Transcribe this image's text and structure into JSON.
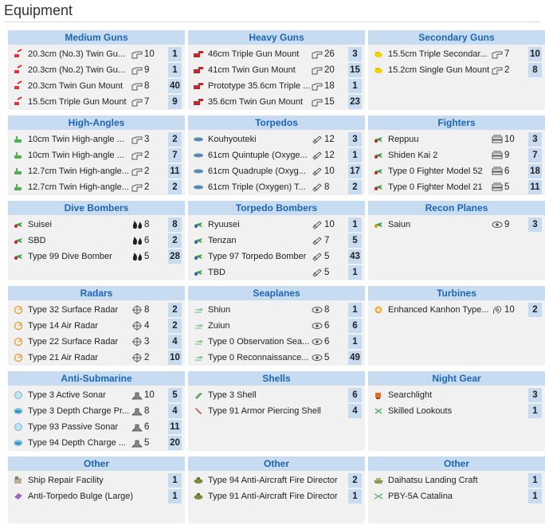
{
  "page_title": "Equipment",
  "colors": {
    "header_bg": "#c7dcf1",
    "header_text": "#1c66b8",
    "card_bg": "#f1f1f1"
  },
  "sections": [
    {
      "title": "Medium Guns",
      "items": [
        {
          "icon": "red-gun-icon",
          "name": "20.3cm (No.3) Twin Gu...",
          "stat_icon": "firepower-icon",
          "stat": "10",
          "count": "1"
        },
        {
          "icon": "red-gun-icon",
          "name": "20.3cm (No.2) Twin Gu...",
          "stat_icon": "firepower-icon",
          "stat": "9",
          "count": "1"
        },
        {
          "icon": "red-gun-icon",
          "name": "20.3cm Twin Gun Mount",
          "stat_icon": "firepower-icon",
          "stat": "8",
          "count": "40"
        },
        {
          "icon": "red-gun-icon",
          "name": "15.5cm Triple Gun Mount",
          "stat_icon": "firepower-icon",
          "stat": "7",
          "count": "9"
        }
      ]
    },
    {
      "title": "Heavy Guns",
      "items": [
        {
          "icon": "heavy-gun-icon",
          "name": "46cm Triple Gun Mount",
          "stat_icon": "firepower-icon",
          "stat": "26",
          "count": "3"
        },
        {
          "icon": "heavy-gun-icon",
          "name": "41cm Twin Gun Mount",
          "stat_icon": "firepower-icon",
          "stat": "20",
          "count": "15"
        },
        {
          "icon": "heavy-gun-icon",
          "name": "Prototype 35.6cm Triple ...",
          "stat_icon": "firepower-icon",
          "stat": "18",
          "count": "1"
        },
        {
          "icon": "heavy-gun-icon",
          "name": "35.6cm Twin Gun Mount",
          "stat_icon": "firepower-icon",
          "stat": "15",
          "count": "23"
        }
      ]
    },
    {
      "title": "Secondary Guns",
      "items": [
        {
          "icon": "secondary-gun-icon",
          "name": "15.5cm Triple Secondar...",
          "stat_icon": "firepower-icon",
          "stat": "7",
          "count": "10"
        },
        {
          "icon": "secondary-gun-icon",
          "name": "15.2cm Single Gun Mount",
          "stat_icon": "firepower-icon",
          "stat": "2",
          "count": "8"
        }
      ]
    },
    {
      "title": "High-Angles",
      "items": [
        {
          "icon": "high-angle-gun-icon",
          "name": "10cm Twin High-angle ...",
          "stat_icon": "firepower-icon",
          "stat": "3",
          "count": "2"
        },
        {
          "icon": "high-angle-gun-icon",
          "name": "10cm Twin High-angle ...",
          "stat_icon": "firepower-icon",
          "stat": "2",
          "count": "7"
        },
        {
          "icon": "high-angle-gun-icon",
          "name": "12.7cm Twin High-angle...",
          "stat_icon": "firepower-icon",
          "stat": "2",
          "count": "11"
        },
        {
          "icon": "high-angle-gun-icon",
          "name": "12.7cm Twin High-angle...",
          "stat_icon": "firepower-icon",
          "stat": "2",
          "count": "2"
        }
      ]
    },
    {
      "title": "Torpedos",
      "items": [
        {
          "icon": "torpedo-icon",
          "name": "Kouhyouteki",
          "stat_icon": "torpedo-stat-icon",
          "stat": "12",
          "count": "3"
        },
        {
          "icon": "torpedo-icon",
          "name": "61cm Quintuple (Oxyge...",
          "stat_icon": "torpedo-stat-icon",
          "stat": "12",
          "count": "1"
        },
        {
          "icon": "torpedo-icon",
          "name": "61cm Quadruple (Oxyg...",
          "stat_icon": "torpedo-stat-icon",
          "stat": "10",
          "count": "17"
        },
        {
          "icon": "torpedo-icon",
          "name": "61cm Triple (Oxygen) T...",
          "stat_icon": "torpedo-stat-icon",
          "stat": "8",
          "count": "2"
        }
      ]
    },
    {
      "title": "Fighters",
      "items": [
        {
          "icon": "fighter-plane-icon",
          "name": "Reppuu",
          "stat_icon": "anti-air-icon",
          "stat": "10",
          "count": "3"
        },
        {
          "icon": "fighter-plane-icon",
          "name": "Shiden Kai 2",
          "stat_icon": "anti-air-icon",
          "stat": "9",
          "count": "7"
        },
        {
          "icon": "fighter-plane-icon",
          "name": "Type 0 Fighter Model 52",
          "stat_icon": "anti-air-icon",
          "stat": "6",
          "count": "18"
        },
        {
          "icon": "fighter-plane-icon",
          "name": "Type 0 Fighter Model 21",
          "stat_icon": "anti-air-icon",
          "stat": "5",
          "count": "11"
        }
      ]
    },
    {
      "title": "Dive Bombers",
      "items": [
        {
          "icon": "dive-bomber-icon",
          "name": "Suisei",
          "stat_icon": "bombing-icon",
          "stat": "8",
          "count": "8"
        },
        {
          "icon": "dive-bomber-icon",
          "name": "SBD",
          "stat_icon": "bombing-icon",
          "stat": "6",
          "count": "2"
        },
        {
          "icon": "dive-bomber-icon",
          "name": "Type 99 Dive Bomber",
          "stat_icon": "bombing-icon",
          "stat": "5",
          "count": "28"
        }
      ]
    },
    {
      "title": "Torpedo Bombers",
      "items": [
        {
          "icon": "torpedo-bomber-icon",
          "name": "Ryuusei",
          "stat_icon": "torpedo-stat-icon",
          "stat": "10",
          "count": "1"
        },
        {
          "icon": "torpedo-bomber-icon",
          "name": "Tenzan",
          "stat_icon": "torpedo-stat-icon",
          "stat": "7",
          "count": "5"
        },
        {
          "icon": "torpedo-bomber-icon",
          "name": "Type 97 Torpedo Bomber",
          "stat_icon": "torpedo-stat-icon",
          "stat": "5",
          "count": "43"
        },
        {
          "icon": "torpedo-bomber-icon",
          "name": "TBD",
          "stat_icon": "torpedo-stat-icon",
          "stat": "5",
          "count": "1"
        }
      ]
    },
    {
      "title": "Recon Planes",
      "items": [
        {
          "icon": "recon-plane-icon",
          "name": "Saiun",
          "stat_icon": "line-of-sight-icon",
          "stat": "9",
          "count": "3"
        }
      ]
    },
    {
      "title": "Radars",
      "items": [
        {
          "icon": "radar-icon",
          "name": "Type 32 Surface Radar",
          "stat_icon": "accuracy-icon",
          "stat": "8",
          "count": "2"
        },
        {
          "icon": "radar-icon",
          "name": "Type 14 Air Radar",
          "stat_icon": "accuracy-icon",
          "stat": "4",
          "count": "2"
        },
        {
          "icon": "radar-icon",
          "name": "Type 22 Surface Radar",
          "stat_icon": "accuracy-icon",
          "stat": "3",
          "count": "4"
        },
        {
          "icon": "radar-icon",
          "name": "Type 21 Air Radar",
          "stat_icon": "accuracy-icon",
          "stat": "2",
          "count": "10"
        }
      ]
    },
    {
      "title": "Seaplanes",
      "items": [
        {
          "icon": "seaplane-icon",
          "name": "Shiun",
          "stat_icon": "line-of-sight-icon",
          "stat": "8",
          "count": "1"
        },
        {
          "icon": "seaplane-icon",
          "name": "Zuiun",
          "stat_icon": "line-of-sight-icon",
          "stat": "6",
          "count": "6"
        },
        {
          "icon": "seaplane-icon",
          "name": "Type 0 Observation Sea...",
          "stat_icon": "line-of-sight-icon",
          "stat": "6",
          "count": "1"
        },
        {
          "icon": "seaplane-icon",
          "name": "Type 0 Reconnaissance...",
          "stat_icon": "line-of-sight-icon",
          "stat": "5",
          "count": "49"
        }
      ]
    },
    {
      "title": "Turbines",
      "items": [
        {
          "icon": "turbine-icon",
          "name": "Enhanced Kanhon Type...",
          "stat_icon": "evasion-icon",
          "stat": "10",
          "count": "2"
        }
      ]
    },
    {
      "title": "Anti-Submarine",
      "items": [
        {
          "icon": "sonar-icon",
          "name": "Type 3 Active Sonar",
          "stat_icon": "anti-submarine-icon",
          "stat": "10",
          "count": "5"
        },
        {
          "icon": "depth-charge-icon",
          "name": "Type 3 Depth Charge Pr...",
          "stat_icon": "anti-submarine-icon",
          "stat": "8",
          "count": "4"
        },
        {
          "icon": "sonar-icon",
          "name": "Type 93 Passive Sonar",
          "stat_icon": "anti-submarine-icon",
          "stat": "6",
          "count": "11"
        },
        {
          "icon": "depth-charge-icon",
          "name": "Type 94 Depth Charge ...",
          "stat_icon": "anti-submarine-icon",
          "stat": "5",
          "count": "20"
        }
      ]
    },
    {
      "title": "Shells",
      "items": [
        {
          "icon": "type3-shell-icon",
          "name": "Type 3 Shell",
          "stat_icon": "",
          "stat": "",
          "count": "6"
        },
        {
          "icon": "ap-shell-icon",
          "name": "Type 91 Armor Piercing Shell",
          "stat_icon": "",
          "stat": "",
          "count": "4"
        }
      ]
    },
    {
      "title": "Night Gear",
      "items": [
        {
          "icon": "searchlight-icon",
          "name": "Searchlight",
          "stat_icon": "",
          "stat": "",
          "count": "3"
        },
        {
          "icon": "lookout-icon",
          "name": "Skilled Lookouts",
          "stat_icon": "",
          "stat": "",
          "count": "1"
        }
      ]
    },
    {
      "title": "Other",
      "items": [
        {
          "icon": "repair-facility-icon",
          "name": "Ship Repair Facility",
          "stat_icon": "",
          "stat": "",
          "count": "1"
        },
        {
          "icon": "bulge-icon",
          "name": "Anti-Torpedo Bulge (Large)",
          "stat_icon": "",
          "stat": "",
          "count": "1"
        }
      ]
    },
    {
      "title": "Other",
      "items": [
        {
          "icon": "aa-director-icon",
          "name": "Type 94 Anti-Aircraft Fire Director",
          "stat_icon": "",
          "stat": "",
          "count": "2"
        },
        {
          "icon": "aa-director-icon",
          "name": "Type 91 Anti-Aircraft Fire Director",
          "stat_icon": "",
          "stat": "",
          "count": "1"
        }
      ]
    },
    {
      "title": "Other",
      "items": [
        {
          "icon": "landing-craft-icon",
          "name": "Daihatsu Landing Craft",
          "stat_icon": "",
          "stat": "",
          "count": "1"
        },
        {
          "icon": "flying-boat-icon",
          "name": "PBY-5A Catalina",
          "stat_icon": "",
          "stat": "",
          "count": "1"
        }
      ]
    }
  ]
}
